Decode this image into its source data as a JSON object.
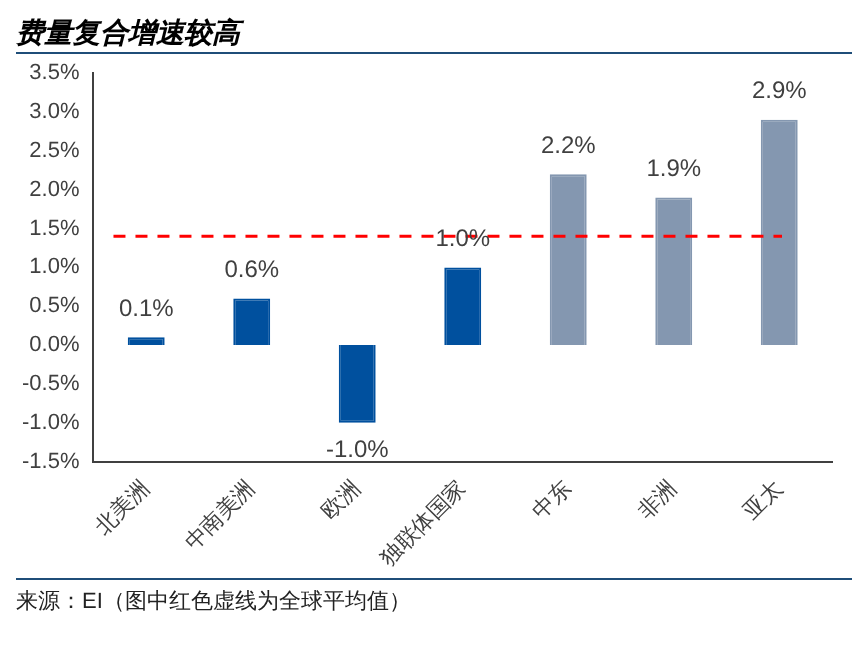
{
  "chart_data": {
    "type": "bar",
    "title": "费量复合增速较高",
    "categories": [
      "北美洲",
      "中南美洲",
      "欧洲",
      "独联体国家",
      "中东",
      "非洲",
      "亚太"
    ],
    "values": [
      0.1,
      0.6,
      -1.0,
      1.0,
      2.2,
      1.9,
      2.9
    ],
    "colors": [
      "#00509e",
      "#00509e",
      "#00509e",
      "#00509e",
      "#8497b0",
      "#8497b0",
      "#8497b0"
    ],
    "value_labels": [
      "0.1%",
      "0.6%",
      "-1.0%",
      "1.0%",
      "2.2%",
      "1.9%",
      "2.9%"
    ],
    "ylim": [
      -1.5,
      3.5
    ],
    "yticks": [
      {
        "value": -1.5,
        "label": "-1.5%"
      },
      {
        "value": -1.0,
        "label": "-1.0%"
      },
      {
        "value": -0.5,
        "label": "-0.5%"
      },
      {
        "value": 0,
        "label": "0.0%"
      },
      {
        "value": 0.5,
        "label": "0.5%"
      },
      {
        "value": 1.0,
        "label": "1.0%"
      },
      {
        "value": 1.5,
        "label": "1.5%"
      },
      {
        "value": 2.0,
        "label": "2.0%"
      },
      {
        "value": 2.5,
        "label": "2.5%"
      },
      {
        "value": 3.0,
        "label": "3.0%"
      },
      {
        "value": 3.5,
        "label": "3.5%"
      }
    ],
    "ref_lines": [
      {
        "axis": "y",
        "value": 1.4,
        "color": "#ff0000",
        "line_style": "dashed"
      }
    ],
    "grid": false,
    "legend": false,
    "annotations": [
      "来源：EI（图中红色虚线为全球平均值）"
    ]
  }
}
